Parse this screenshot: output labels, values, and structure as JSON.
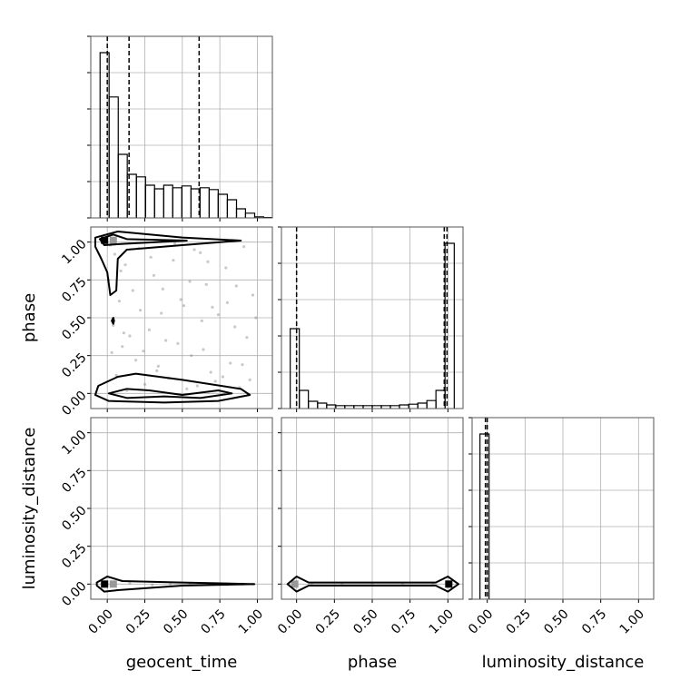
{
  "chart_data": [
    {
      "type": "histogram",
      "xlim": [
        -0.11,
        1.1
      ],
      "ylim": [
        0,
        500
      ],
      "xticks": [
        0,
        0.25,
        0.5,
        0.75,
        1
      ],
      "yticks": [
        0,
        100,
        200,
        300,
        400,
        500
      ],
      "grid": true,
      "color": "#000000",
      "bins": [
        -0.048,
        0.012,
        0.073,
        0.133,
        0.194,
        0.255,
        0.315,
        0.376,
        0.436,
        0.497,
        0.558,
        0.618,
        0.679,
        0.739,
        0.8,
        0.861,
        0.921,
        0.982,
        1.042,
        1.103
      ],
      "counts": [
        455,
        333,
        175,
        120,
        113,
        90,
        80,
        90,
        83,
        88,
        80,
        83,
        78,
        65,
        50,
        25,
        13,
        3,
        1
      ],
      "quantiles": [
        0,
        0.145,
        0.612
      ]
    },
    {
      "type": "scatter",
      "xlim": [
        -0.11,
        1.1
      ],
      "ylim": [
        -0.1,
        1.1
      ],
      "xticks": [
        0,
        0.25,
        0.5,
        0.75,
        1
      ],
      "yticks": [
        {
          "value": 0,
          "label": "0.00"
        },
        {
          "value": 0.25,
          "label": "0.25"
        },
        {
          "value": 0.5,
          "label": "0.50"
        },
        {
          "value": 0.75,
          "label": "0.75"
        },
        {
          "value": 1,
          "label": "1.00"
        }
      ],
      "ylabel": "phase",
      "grid": true,
      "color": "#000000",
      "points": {
        "x": [
          0.02,
          0.05,
          0.12,
          0.31,
          0.44,
          0.58,
          0.66,
          0.79,
          0.91,
          0.97,
          0.08,
          0.22,
          0.37,
          0.51,
          0.63,
          0.74,
          0.85,
          0.15,
          0.28,
          0.47,
          0.03,
          0.1,
          0.19,
          0.34,
          0.56,
          0.69,
          0.82,
          0.95,
          0.06,
          0.25,
          0.41,
          0.6,
          0.72,
          0.88,
          0.13,
          0.33,
          0.53,
          0.77,
          0.01,
          0.17,
          0.39,
          0.64,
          0.93,
          0.09,
          0.29,
          0.49,
          0.7,
          0.86,
          0.04,
          0.21,
          0.45,
          0.67,
          0.99,
          0.11,
          0.36,
          0.55,
          0.8,
          0.24,
          0.62,
          0.9
        ],
        "y": [
          0.98,
          0.92,
          0.85,
          0.78,
          0.88,
          0.95,
          0.72,
          0.83,
          0.97,
          0.65,
          0.61,
          0.55,
          0.69,
          0.58,
          0.48,
          0.52,
          0.44,
          0.38,
          0.42,
          0.33,
          0.27,
          0.31,
          0.22,
          0.18,
          0.25,
          0.14,
          0.2,
          0.09,
          0.12,
          0.06,
          0.1,
          0.05,
          0.08,
          0.04,
          0.02,
          0.15,
          0.03,
          0.11,
          0.75,
          0.68,
          0.35,
          0.29,
          0.37,
          0.81,
          0.9,
          0.62,
          0.57,
          0.71,
          0.45,
          0.96,
          0.99,
          0.87,
          0.5,
          0.4,
          0.53,
          0.74,
          0.6,
          0.28,
          0.93,
          0.19
        ]
      },
      "contours": [
        {
          "x": [
            -0.08,
            0.07,
            0.5,
            0.89,
            0.5,
            0.13,
            0.07,
            0.06,
            0.02,
            0.0,
            -0.04,
            -0.08
          ],
          "y": [
            1.03,
            1.07,
            1.03,
            1.01,
            0.98,
            0.95,
            0.89,
            0.68,
            0.65,
            0.8,
            0.89,
            0.97
          ]
        },
        {
          "x": [
            -0.05,
            0.04,
            0.13,
            0.53,
            0.13,
            -0.02
          ],
          "y": [
            1.02,
            1.05,
            1.02,
            1.01,
            0.99,
            0.98
          ]
        },
        {
          "x": [
            -0.06,
            0.07,
            0.19,
            0.5,
            0.89,
            0.95,
            0.74,
            0.38,
            0.01,
            -0.08
          ],
          "y": [
            0.05,
            0.11,
            0.13,
            0.09,
            0.03,
            -0.01,
            -0.05,
            -0.06,
            -0.05,
            -0.01
          ]
        },
        {
          "x": [
            0.01,
            0.13,
            0.28,
            0.5,
            0.74,
            0.83,
            0.62,
            0.38,
            0.13
          ],
          "y": [
            0.0,
            0.03,
            0.02,
            -0.01,
            0.02,
            0.0,
            -0.03,
            -0.02,
            -0.03
          ]
        },
        {
          "x": [
            0.03,
            0.04,
            0.045,
            0.04
          ],
          "y": [
            0.48,
            0.5,
            0.48,
            0.46
          ]
        }
      ],
      "cells": {
        "x": [
          -0.018,
          0.04
        ],
        "y": [
          1.012,
          1.012
        ],
        "colors": [
          "#000000",
          "#999999"
        ]
      }
    },
    {
      "type": "histogram",
      "xlim": [
        -0.1,
        1.1
      ],
      "ylim": [
        0,
        500
      ],
      "xticks": [
        0,
        0.25,
        0.5,
        0.75,
        1
      ],
      "yticks": [
        0,
        100,
        200,
        300,
        400,
        500
      ],
      "grid": true,
      "color": "#000000",
      "bins": [
        -0.042,
        0.018,
        0.078,
        0.139,
        0.199,
        0.259,
        0.319,
        0.379,
        0.44,
        0.5,
        0.56,
        0.62,
        0.68,
        0.741,
        0.801,
        0.861,
        0.921,
        0.981,
        1.042
      ],
      "counts": [
        220,
        50,
        20,
        15,
        10,
        8,
        8,
        8,
        8,
        8,
        8,
        8,
        10,
        12,
        15,
        22,
        50,
        455
      ],
      "quantiles": [
        0,
        0.976,
        0.994
      ]
    },
    {
      "type": "scatter",
      "xlim": [
        -0.11,
        1.1
      ],
      "ylim": [
        -0.1,
        1.1
      ],
      "xticks": [
        {
          "value": 0,
          "label": "0.00"
        },
        {
          "value": 0.25,
          "label": "0.25"
        },
        {
          "value": 0.5,
          "label": "0.50"
        },
        {
          "value": 0.75,
          "label": "0.75"
        },
        {
          "value": 1,
          "label": "1.00"
        }
      ],
      "yticks": [
        {
          "value": 0,
          "label": "0.00"
        },
        {
          "value": 0.25,
          "label": "0.25"
        },
        {
          "value": 0.5,
          "label": "0.50"
        },
        {
          "value": 0.75,
          "label": "0.75"
        },
        {
          "value": 1,
          "label": "1.00"
        }
      ],
      "xlabel": "geocent_time",
      "ylabel": "luminosity_distance",
      "grid": true,
      "color": "#000000",
      "points": {
        "x": [
          0.05,
          0.15,
          0.3,
          0.42,
          0.55,
          0.68,
          0.8,
          0.9,
          0.97
        ],
        "y": [
          0,
          0.005,
          -0.005,
          0,
          0.003,
          0,
          -0.003,
          0,
          0
        ]
      },
      "contours": [
        {
          "x": [
            -0.07,
            0.0,
            0.1,
            0.5,
            0.98,
            0.5,
            0.07,
            -0.02,
            -0.07
          ],
          "y": [
            0.01,
            0.05,
            0.02,
            0.01,
            0.0,
            -0.01,
            -0.04,
            -0.05,
            -0.01
          ]
        }
      ],
      "cells": {
        "x": [
          -0.018,
          0.04
        ],
        "y": [
          0,
          0
        ],
        "colors": [
          "#000000",
          "#999999"
        ]
      }
    },
    {
      "type": "scatter",
      "xlim": [
        -0.1,
        1.1
      ],
      "ylim": [
        -0.1,
        1.1
      ],
      "xticks": [
        {
          "value": 0,
          "label": "0.00"
        },
        {
          "value": 0.25,
          "label": "0.25"
        },
        {
          "value": 0.5,
          "label": "0.50"
        },
        {
          "value": 0.75,
          "label": "0.75"
        },
        {
          "value": 1,
          "label": "1.00"
        }
      ],
      "yticks": [
        0,
        0.25,
        0.5,
        0.75,
        1
      ],
      "xlabel": "phase",
      "grid": true,
      "color": "#000000",
      "points": {
        "x": [
          0.1,
          0.3,
          0.5,
          0.7,
          0.9
        ],
        "y": [
          0,
          0,
          0,
          0,
          0
        ]
      },
      "contours": [
        {
          "x": [
            -0.06,
            0,
            0.08,
            0.92,
            1.0,
            1.07,
            1.0,
            0.92,
            0.08,
            0
          ],
          "y": [
            0,
            0.05,
            0.01,
            0.01,
            0.05,
            0,
            -0.05,
            -0.01,
            -0.01,
            -0.05
          ]
        }
      ],
      "cells": {
        "x": [
          -0.012,
          1.006
        ],
        "y": [
          0,
          0
        ],
        "colors": [
          "#999999",
          "#000000"
        ]
      }
    },
    {
      "type": "histogram",
      "xlim": [
        -0.1,
        1.1
      ],
      "ylim": [
        0,
        500
      ],
      "xticks": [
        {
          "value": 0,
          "label": "0.00"
        },
        {
          "value": 0.25,
          "label": "0.25"
        },
        {
          "value": 0.5,
          "label": "0.50"
        },
        {
          "value": 0.75,
          "label": "0.75"
        },
        {
          "value": 1,
          "label": "1.00"
        }
      ],
      "yticks": [
        0,
        100,
        200,
        300,
        400,
        500
      ],
      "xlabel": "luminosity_distance",
      "grid": true,
      "color": "#000000",
      "bins": [
        -0.048,
        0.012
      ],
      "counts": [
        455
      ],
      "quantiles": [
        -0.012,
        0
      ]
    }
  ]
}
